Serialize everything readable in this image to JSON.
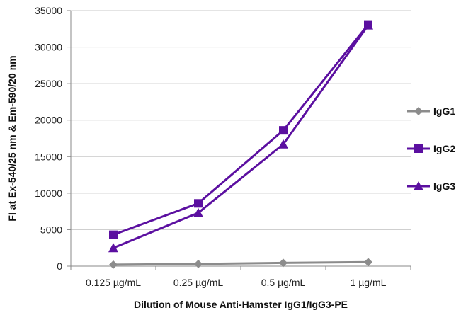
{
  "chart_data": {
    "type": "line",
    "title": "",
    "xlabel": "Dilution of Mouse Anti-Hamster IgG1/IgG3-PE",
    "ylabel": "FI at Ex-540/25 nm & Em-590/20 nm",
    "categories": [
      "0.125 µg/mL",
      "0.25 µg/mL",
      "0.5 µg/mL",
      "1 µg/mL"
    ],
    "ylim": [
      0,
      35000
    ],
    "yticks": [
      0,
      5000,
      10000,
      15000,
      20000,
      25000,
      30000,
      35000
    ],
    "grid": true,
    "legend_position": "right",
    "series": [
      {
        "name": "IgG1",
        "values": [
          200,
          300,
          450,
          550
        ],
        "color": "#8c8c8c",
        "marker": "diamond"
      },
      {
        "name": "IgG2",
        "values": [
          4300,
          8600,
          18600,
          33100
        ],
        "color": "#5b0fa0",
        "marker": "square"
      },
      {
        "name": "IgG3",
        "values": [
          2500,
          7300,
          16700,
          33000
        ],
        "color": "#5b0fa0",
        "marker": "triangle"
      }
    ]
  }
}
